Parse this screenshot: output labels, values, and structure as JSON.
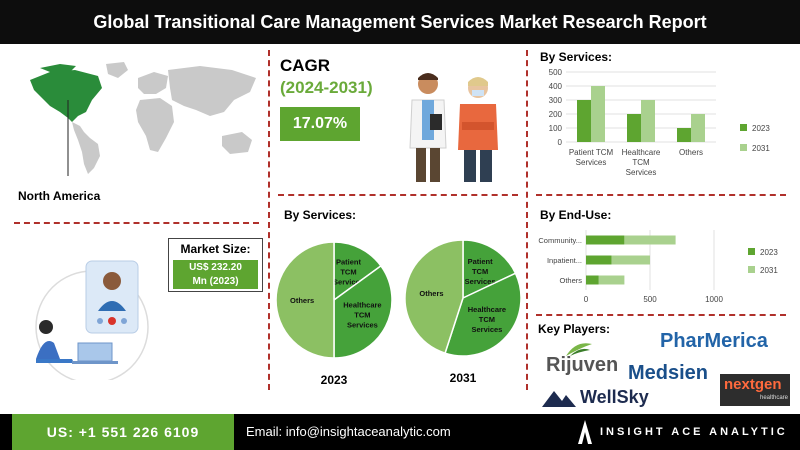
{
  "header": {
    "title": "Global Transitional Care Management Services Market Research Report"
  },
  "region": {
    "label": "North America"
  },
  "market_size": {
    "title": "Market Size:",
    "value_line1": "US$ 232.20",
    "value_line2": "Mn (2023)"
  },
  "cagr": {
    "title": "CAGR",
    "period": "(2024-2031)",
    "value": "17.07%"
  },
  "sections": {
    "by_services_top": "By Services:",
    "by_end_use": "By End-Use:",
    "by_services_pie": "By Services:",
    "key_players": "Key Players:"
  },
  "colors": {
    "green_dark": "#5ea530",
    "green_light": "#a9d18e",
    "pie_light": "#8cc063",
    "pie_dark": "#45a23a",
    "divider": "#b0302b"
  },
  "chart_data": [
    {
      "type": "bar",
      "name": "by-services-bar",
      "categories": [
        "Patient TCM Services",
        "Healthcare TCM Services",
        "Others"
      ],
      "category_lines": [
        [
          "Patient TCM",
          "Services"
        ],
        [
          "Healthcare",
          "TCM",
          "Services"
        ],
        [
          "Others"
        ]
      ],
      "series": [
        {
          "name": "2023",
          "values": [
            300,
            200,
            100
          ],
          "color": "#5ea530"
        },
        {
          "name": "2031",
          "values": [
            400,
            300,
            200
          ],
          "color": "#a9d18e"
        }
      ],
      "ylim": [
        0,
        500
      ],
      "yticks": [
        0,
        100,
        200,
        300,
        400,
        500
      ],
      "legend": "right",
      "grid": true
    },
    {
      "type": "bar",
      "orientation": "horizontal",
      "stacked": true,
      "name": "by-end-use-bar",
      "categories": [
        "Community...",
        "Inpatient...",
        "Others"
      ],
      "series": [
        {
          "name": "2023",
          "values": [
            300,
            200,
            100
          ],
          "color": "#5ea530"
        },
        {
          "name": "2031",
          "values": [
            400,
            300,
            200
          ],
          "color": "#a9d18e"
        }
      ],
      "xlim": [
        0,
        1000
      ],
      "xticks": [
        0,
        500,
        1000
      ],
      "legend": "right",
      "grid": true
    },
    {
      "type": "pie",
      "name": "pie-2023",
      "label": "2023",
      "slices": [
        {
          "label_lines": [
            "Patient",
            "TCM",
            "Services"
          ],
          "value": 15,
          "color": "#45a23a"
        },
        {
          "label_lines": [
            "Healthcare",
            "TCM",
            "Services"
          ],
          "value": 35,
          "color": "#45a23a"
        },
        {
          "label_lines": [
            "Others"
          ],
          "value": 50,
          "color": "#8cc063"
        }
      ]
    },
    {
      "type": "pie",
      "name": "pie-2031",
      "label": "2031",
      "slices": [
        {
          "label_lines": [
            "Patient",
            "TCM",
            "Services"
          ],
          "value": 18,
          "color": "#45a23a"
        },
        {
          "label_lines": [
            "Healthcare",
            "TCM",
            "Services"
          ],
          "value": 37,
          "color": "#45a23a"
        },
        {
          "label_lines": [
            "Others"
          ],
          "value": 45,
          "color": "#8cc063"
        }
      ]
    }
  ],
  "key_players": {
    "rijuven": "Rijuven",
    "pharmerica": "PharMerica",
    "medsien": "Medsien",
    "nextgen": "nextgen",
    "nextgen_sub": "healthcare",
    "wellsky": "WellSky"
  },
  "footer": {
    "phone": "US: +1 551 226 6109",
    "email": "Email: info@insightaceanalytic.com",
    "brand": "INSIGHT ACE ANALYTIC"
  }
}
